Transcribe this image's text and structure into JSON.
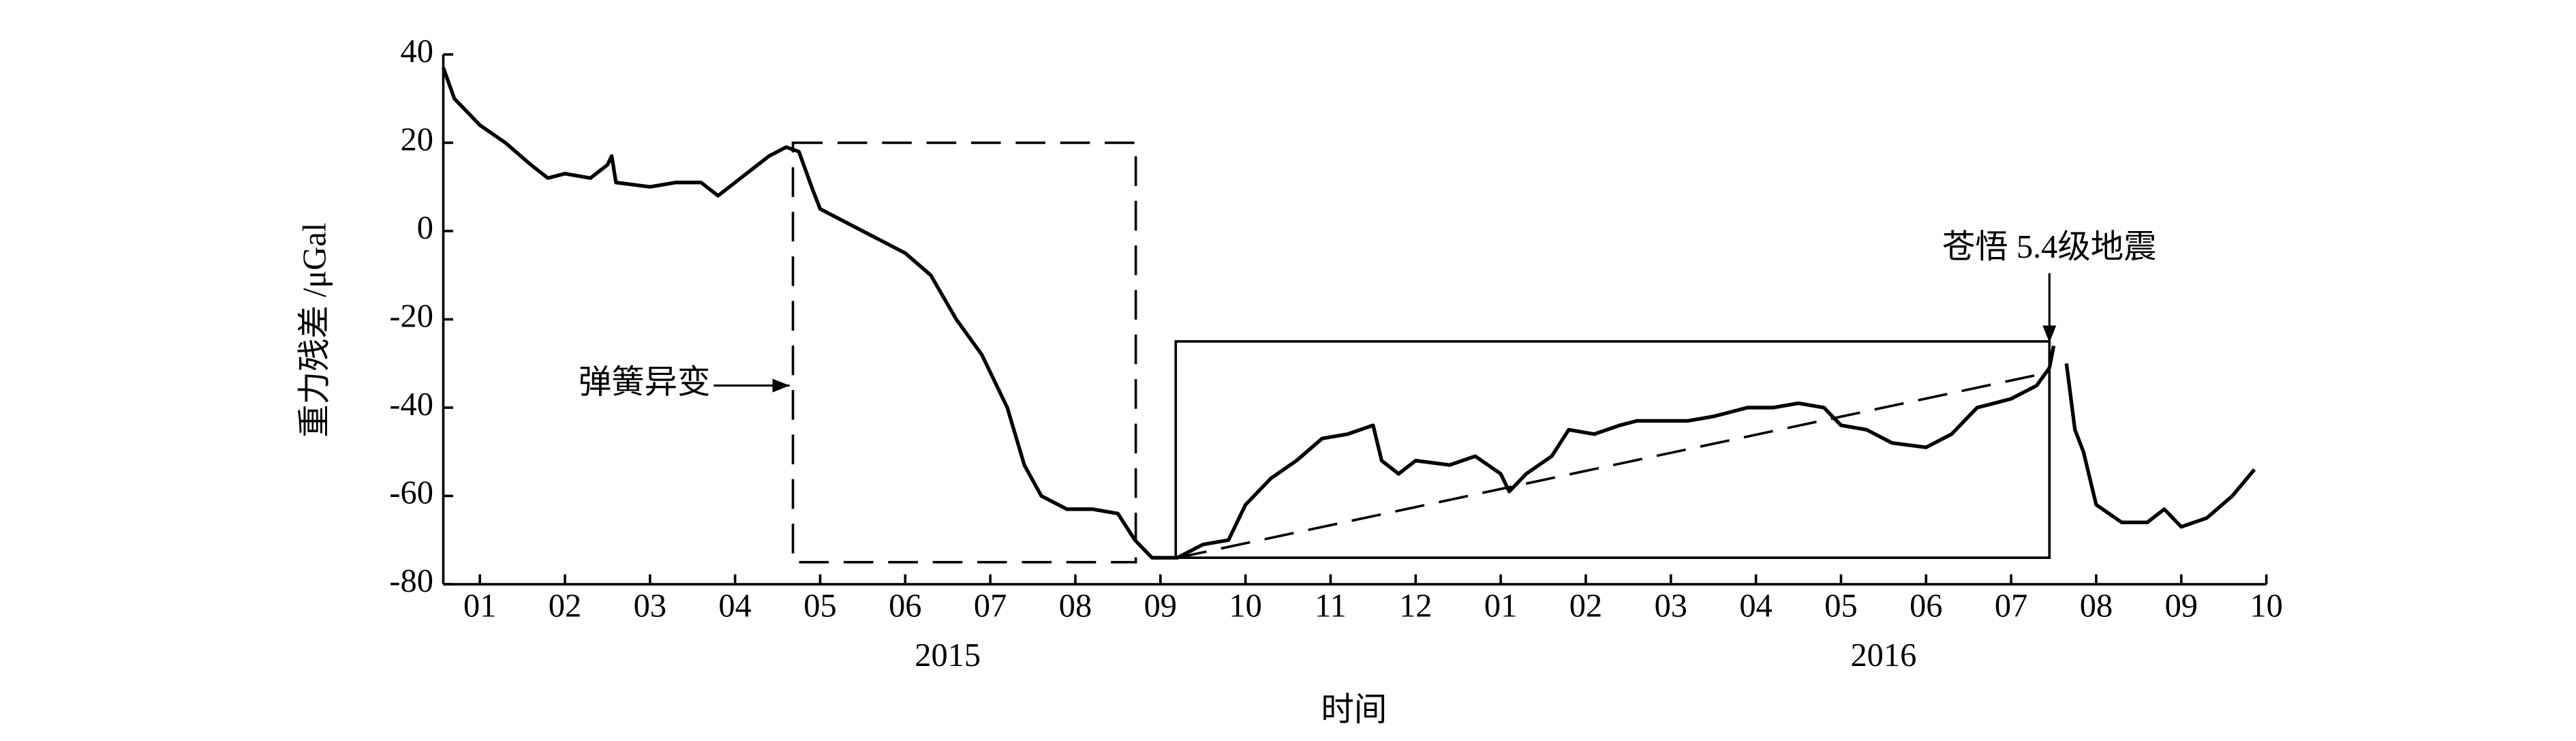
{
  "chart_data": {
    "type": "line",
    "xlabel": "时间",
    "ylabel": "重力残差 /μGal",
    "x": [
      0.57,
      0.7,
      1.0,
      1.3,
      1.6,
      1.8,
      2.0,
      2.3,
      2.5,
      2.55,
      2.6,
      3.0,
      3.3,
      3.6,
      3.8,
      4.0,
      4.2,
      4.4,
      4.6,
      4.75,
      4.9,
      5.0,
      5.3,
      5.6,
      6.0,
      6.3,
      6.6,
      6.9,
      7.2,
      7.4,
      7.6,
      7.9,
      8.2,
      8.5,
      8.7,
      8.9,
      9.2,
      9.5,
      9.8,
      10.0,
      10.3,
      10.6,
      10.9,
      11.2,
      11.5,
      11.6,
      11.8,
      12.0,
      12.4,
      12.7,
      13.0,
      13.1,
      13.3,
      13.6,
      13.8,
      14.1,
      14.4,
      14.6,
      14.8,
      15.2,
      15.5,
      15.9,
      16.2,
      16.5,
      16.8,
      17.0,
      17.3,
      17.6,
      18.0,
      18.3,
      18.6,
      19.0,
      19.3,
      19.45,
      19.5,
      19.58,
      19.65,
      19.75,
      19.85,
      20.0,
      20.3,
      20.6,
      20.8,
      21.0,
      21.3,
      21.6,
      21.86
    ],
    "series": [
      {
        "color": "#000000",
        "values": [
          37,
          30,
          24,
          20,
          15,
          12,
          13,
          12,
          15,
          17,
          11,
          10,
          11,
          11,
          8,
          11,
          14,
          17,
          19,
          18,
          10,
          5,
          2,
          -1,
          -5,
          -10,
          -20,
          -28,
          -40,
          -53,
          -60,
          -63,
          -63,
          -64,
          -70,
          -74,
          -74,
          -71,
          -70,
          -62,
          -56,
          -52,
          -47,
          -46,
          -44,
          -52,
          -55,
          -52,
          -53,
          -51,
          -55,
          -59,
          -55,
          -51,
          -45,
          -46,
          -44,
          -43,
          -43,
          -43,
          -42,
          -40,
          -40,
          -39,
          -40,
          -44,
          -45,
          -48,
          -49,
          -46,
          -40,
          -38,
          -35,
          -31,
          -26,
          null,
          -30,
          -45,
          -50,
          -62,
          -66,
          -66,
          -63,
          -67,
          -65,
          -60,
          -54
        ]
      }
    ],
    "xlim": [
      0.57,
      22
    ],
    "ylim": [
      -80,
      40
    ],
    "yticks": [
      -80,
      -60,
      -40,
      -20,
      0,
      20,
      40
    ],
    "xticks": [
      {
        "value": 1,
        "label": "01"
      },
      {
        "value": 2,
        "label": "02"
      },
      {
        "value": 3,
        "label": "03"
      },
      {
        "value": 4,
        "label": "04"
      },
      {
        "value": 5,
        "label": "05"
      },
      {
        "value": 6,
        "label": "06"
      },
      {
        "value": 7,
        "label": "07"
      },
      {
        "value": 8,
        "label": "08"
      },
      {
        "value": 9,
        "label": "09"
      },
      {
        "value": 10,
        "label": "10"
      },
      {
        "value": 11,
        "label": "11"
      },
      {
        "value": 12,
        "label": "12"
      },
      {
        "value": 13,
        "label": "01"
      },
      {
        "value": 14,
        "label": "02"
      },
      {
        "value": 15,
        "label": "03"
      },
      {
        "value": 16,
        "label": "04"
      },
      {
        "value": 17,
        "label": "05"
      },
      {
        "value": 18,
        "label": "06"
      },
      {
        "value": 19,
        "label": "07"
      },
      {
        "value": 20,
        "label": "08"
      },
      {
        "value": 21,
        "label": "09"
      },
      {
        "value": 22,
        "label": "10"
      }
    ],
    "years": [
      {
        "value": 6.5,
        "label": "2015"
      },
      {
        "value": 17.5,
        "label": "2016"
      }
    ],
    "regions": [
      {
        "style": "dashed",
        "x": [
          4.68,
          8.71
        ],
        "y": [
          -75,
          20
        ]
      },
      {
        "style": "solid",
        "x": [
          9.18,
          19.45
        ],
        "y": [
          -74,
          -25
        ]
      }
    ],
    "trend": {
      "x": [
        9.2,
        19.45
      ],
      "y": [
        -74,
        -32
      ]
    },
    "annotations": [
      {
        "text": "弹簧异变",
        "x": 4.68,
        "y": -35,
        "direction": "right"
      },
      {
        "text": "苍悟 5.4级地震",
        "x": 19.45,
        "y": -26,
        "direction": "down"
      }
    ]
  }
}
